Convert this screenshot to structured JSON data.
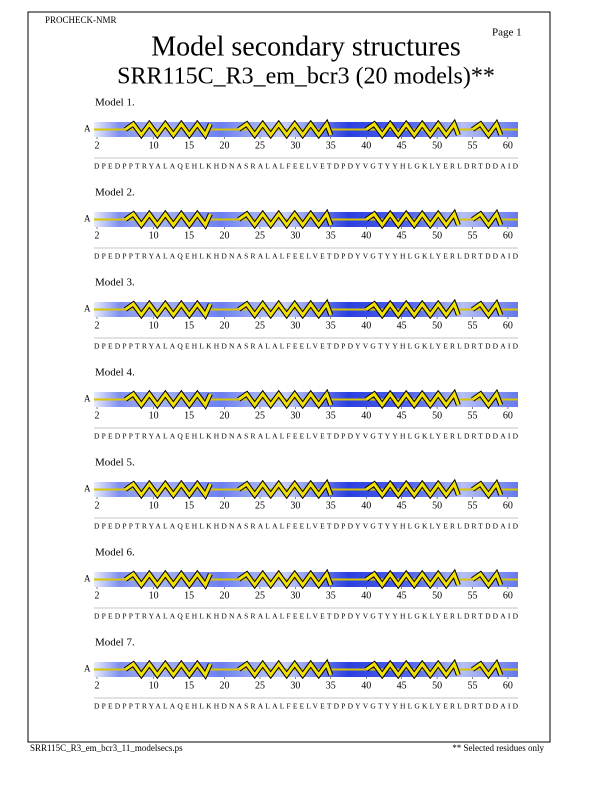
{
  "header": {
    "program": "PROCHECK-NMR",
    "page": "Page  1",
    "title": "Model secondary structures",
    "subtitle": "SRR115C_R3_em_bcr3 (20 models)**"
  },
  "chain": "A",
  "residue_ticks": [
    2,
    10,
    15,
    20,
    25,
    30,
    35,
    40,
    45,
    50,
    55,
    60
  ],
  "sequence": "DPEDPPTRYALAQEHLKHDNASRALALFEELVETDPDYVGTYYHLGKLYERLDRTDDAID",
  "helices": [
    [
      6,
      18
    ],
    [
      22,
      35
    ],
    [
      40,
      53
    ],
    [
      55,
      59
    ]
  ],
  "models": [
    {
      "label": "Model  1."
    },
    {
      "label": "Model  2."
    },
    {
      "label": "Model  3."
    },
    {
      "label": "Model  4."
    },
    {
      "label": "Model  5."
    },
    {
      "label": "Model  6."
    },
    {
      "label": "Model  7."
    }
  ],
  "footer": {
    "file": "SRR115C_R3_em_bcr3_11_modelsecs.ps",
    "note": "** Selected residues only"
  }
}
